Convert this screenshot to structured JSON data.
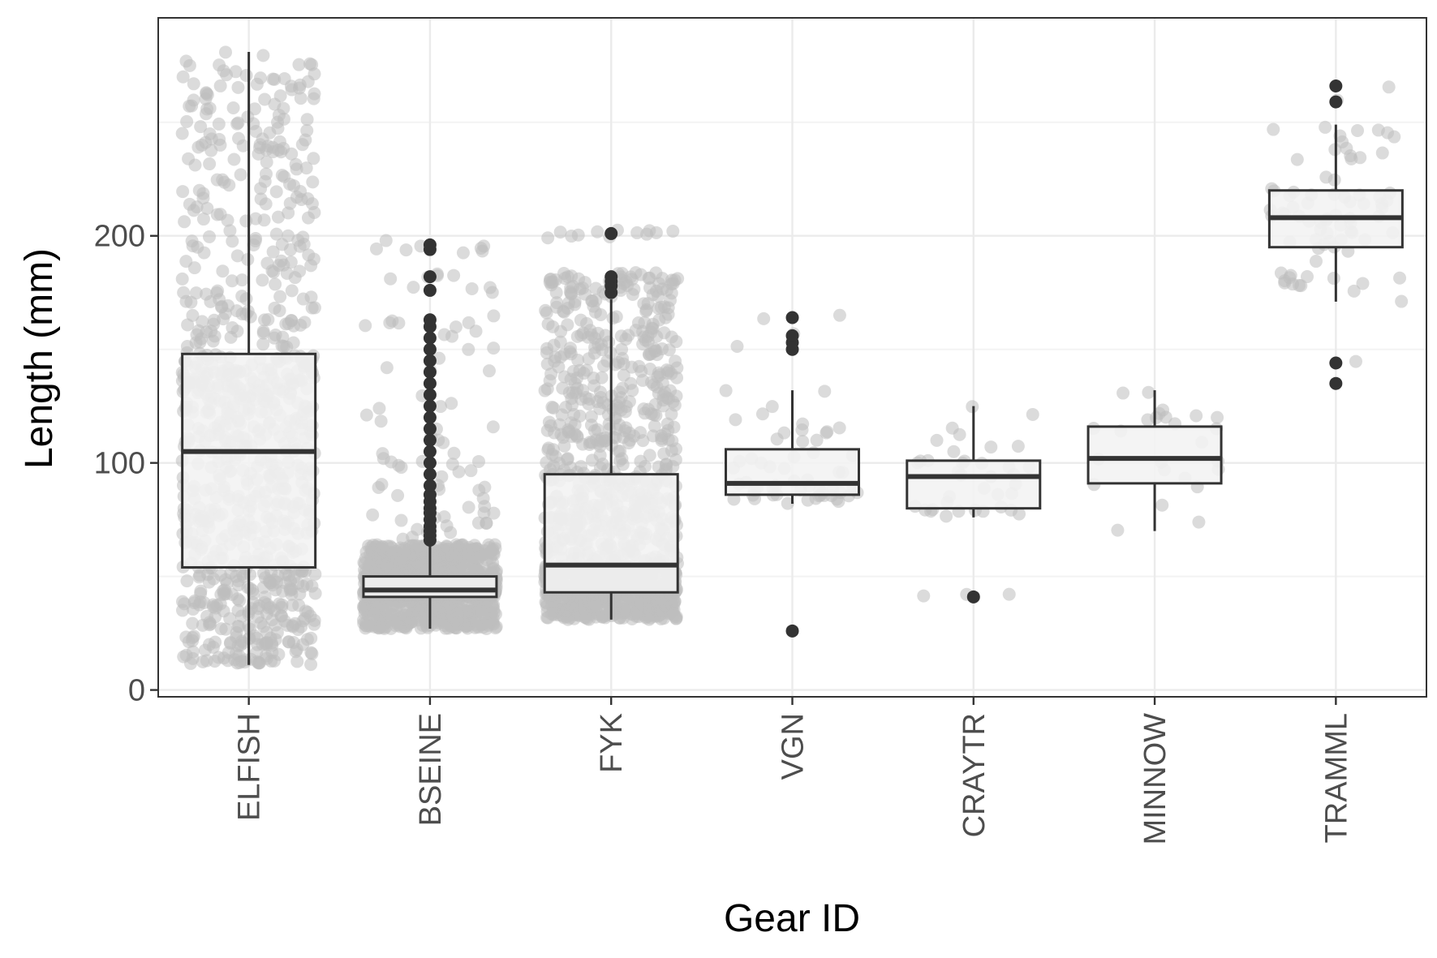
{
  "chart_data": {
    "type": "box",
    "xlabel": "Gear ID",
    "ylabel": "Length (mm)",
    "categories": [
      "ELFISH",
      "BSEINE",
      "FYK",
      "VGN",
      "CRAYTR",
      "MINNOW",
      "TRAMML"
    ],
    "y_ticks": [
      0,
      100,
      200
    ],
    "ylim": [
      -3,
      296
    ],
    "grid": true,
    "legend": "none",
    "boxes": [
      {
        "category": "ELFISH",
        "whisker_low": 11,
        "q1": 54,
        "median": 105,
        "q3": 148,
        "whisker_high": 281,
        "outliers": []
      },
      {
        "category": "BSEINE",
        "whisker_low": 27,
        "q1": 41,
        "median": 44,
        "q3": 50,
        "whisker_high": 64,
        "outliers": [
          66,
          68,
          70,
          72,
          75,
          78,
          80,
          83,
          86,
          90,
          95,
          100,
          105,
          110,
          115,
          120,
          125,
          130,
          135,
          140,
          145,
          150,
          155,
          160,
          163,
          176,
          182,
          194,
          196
        ]
      },
      {
        "category": "FYK",
        "whisker_low": 31,
        "q1": 43,
        "median": 55,
        "q3": 95,
        "whisker_high": 172,
        "outliers": [
          175,
          178,
          180,
          182,
          201
        ]
      },
      {
        "category": "VGN",
        "whisker_low": 82,
        "q1": 86,
        "median": 91,
        "q3": 106,
        "whisker_high": 132,
        "outliers": [
          26,
          150,
          153,
          156,
          164
        ]
      },
      {
        "category": "CRAYTR",
        "whisker_low": 76,
        "q1": 80,
        "median": 94,
        "q3": 101,
        "whisker_high": 125,
        "outliers": [
          41
        ]
      },
      {
        "category": "MINNOW",
        "whisker_low": 70,
        "q1": 91,
        "median": 102,
        "q3": 116,
        "whisker_high": 132,
        "outliers": []
      },
      {
        "category": "TRAMML",
        "whisker_low": 171,
        "q1": 195,
        "median": 208,
        "q3": 220,
        "whisker_high": 249,
        "outliers": [
          135,
          144,
          259,
          266
        ]
      }
    ],
    "colors": {
      "jitter_points": "#bdbdbd",
      "box_fill": "#f2f2f2",
      "box_line": "#333333",
      "outlier": "#333333",
      "panel_border": "#333333",
      "grid_major": "#ebebeb",
      "grid_minor": "#f3f3f3"
    }
  }
}
